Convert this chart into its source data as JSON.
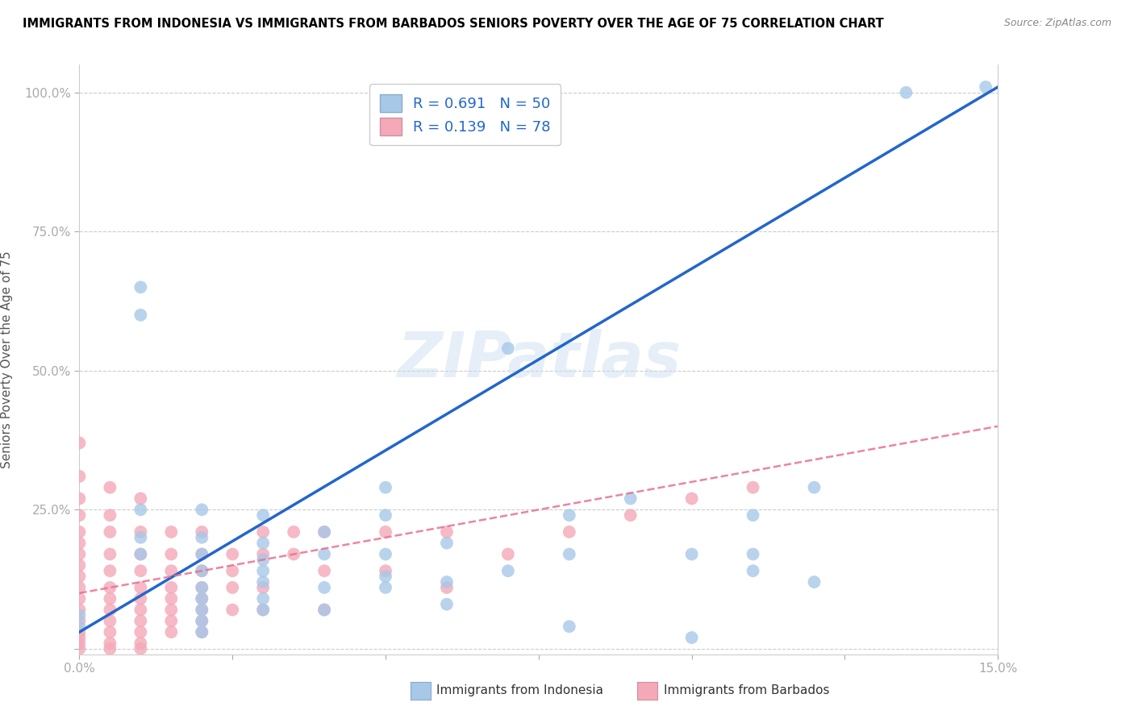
{
  "title": "IMMIGRANTS FROM INDONESIA VS IMMIGRANTS FROM BARBADOS SENIORS POVERTY OVER THE AGE OF 75 CORRELATION CHART",
  "source": "Source: ZipAtlas.com",
  "ylabel": "Seniors Poverty Over the Age of 75",
  "xlim": [
    0.0,
    0.15
  ],
  "ylim": [
    0.0,
    1.05
  ],
  "indonesia_color": "#a8c8e8",
  "barbados_color": "#f4a8b8",
  "indonesia_line_color": "#2266cc",
  "barbados_line_color": "#e87090",
  "indonesia_R": 0.691,
  "indonesia_N": 50,
  "barbados_R": 0.139,
  "barbados_N": 78,
  "indonesia_line": [
    [
      0.0,
      0.03
    ],
    [
      0.15,
      1.01
    ]
  ],
  "barbados_line": [
    [
      0.0,
      0.1
    ],
    [
      0.15,
      0.4
    ]
  ],
  "indonesia_scatter": [
    [
      0.0,
      0.06
    ],
    [
      0.0,
      0.04
    ],
    [
      0.01,
      0.65
    ],
    [
      0.01,
      0.6
    ],
    [
      0.01,
      0.25
    ],
    [
      0.01,
      0.2
    ],
    [
      0.01,
      0.17
    ],
    [
      0.02,
      0.25
    ],
    [
      0.02,
      0.2
    ],
    [
      0.02,
      0.17
    ],
    [
      0.02,
      0.14
    ],
    [
      0.02,
      0.11
    ],
    [
      0.02,
      0.09
    ],
    [
      0.02,
      0.07
    ],
    [
      0.02,
      0.05
    ],
    [
      0.02,
      0.03
    ],
    [
      0.03,
      0.24
    ],
    [
      0.03,
      0.19
    ],
    [
      0.03,
      0.16
    ],
    [
      0.03,
      0.14
    ],
    [
      0.03,
      0.12
    ],
    [
      0.03,
      0.09
    ],
    [
      0.03,
      0.07
    ],
    [
      0.04,
      0.21
    ],
    [
      0.04,
      0.17
    ],
    [
      0.04,
      0.11
    ],
    [
      0.04,
      0.07
    ],
    [
      0.05,
      0.29
    ],
    [
      0.05,
      0.24
    ],
    [
      0.05,
      0.17
    ],
    [
      0.05,
      0.11
    ],
    [
      0.06,
      0.19
    ],
    [
      0.06,
      0.12
    ],
    [
      0.07,
      0.54
    ],
    [
      0.07,
      0.14
    ],
    [
      0.08,
      0.24
    ],
    [
      0.08,
      0.17
    ],
    [
      0.08,
      0.04
    ],
    [
      0.09,
      0.27
    ],
    [
      0.1,
      0.17
    ],
    [
      0.1,
      0.02
    ],
    [
      0.11,
      0.24
    ],
    [
      0.11,
      0.17
    ],
    [
      0.11,
      0.14
    ],
    [
      0.12,
      0.29
    ],
    [
      0.12,
      0.12
    ],
    [
      0.135,
      1.0
    ],
    [
      0.148,
      1.01
    ],
    [
      0.05,
      0.13
    ],
    [
      0.06,
      0.08
    ]
  ],
  "barbados_scatter": [
    [
      0.0,
      0.37
    ],
    [
      0.0,
      0.31
    ],
    [
      0.0,
      0.27
    ],
    [
      0.0,
      0.24
    ],
    [
      0.0,
      0.21
    ],
    [
      0.0,
      0.19
    ],
    [
      0.0,
      0.17
    ],
    [
      0.0,
      0.15
    ],
    [
      0.0,
      0.13
    ],
    [
      0.0,
      0.11
    ],
    [
      0.0,
      0.09
    ],
    [
      0.0,
      0.07
    ],
    [
      0.0,
      0.05
    ],
    [
      0.0,
      0.03
    ],
    [
      0.0,
      0.02
    ],
    [
      0.0,
      0.01
    ],
    [
      0.0,
      0.0
    ],
    [
      0.005,
      0.29
    ],
    [
      0.005,
      0.24
    ],
    [
      0.005,
      0.21
    ],
    [
      0.005,
      0.17
    ],
    [
      0.005,
      0.14
    ],
    [
      0.005,
      0.11
    ],
    [
      0.005,
      0.09
    ],
    [
      0.005,
      0.07
    ],
    [
      0.005,
      0.05
    ],
    [
      0.005,
      0.03
    ],
    [
      0.005,
      0.01
    ],
    [
      0.005,
      0.0
    ],
    [
      0.01,
      0.27
    ],
    [
      0.01,
      0.21
    ],
    [
      0.01,
      0.17
    ],
    [
      0.01,
      0.14
    ],
    [
      0.01,
      0.11
    ],
    [
      0.01,
      0.09
    ],
    [
      0.01,
      0.07
    ],
    [
      0.01,
      0.05
    ],
    [
      0.01,
      0.03
    ],
    [
      0.01,
      0.01
    ],
    [
      0.01,
      0.0
    ],
    [
      0.015,
      0.21
    ],
    [
      0.015,
      0.17
    ],
    [
      0.015,
      0.14
    ],
    [
      0.015,
      0.11
    ],
    [
      0.015,
      0.09
    ],
    [
      0.015,
      0.07
    ],
    [
      0.015,
      0.05
    ],
    [
      0.015,
      0.03
    ],
    [
      0.02,
      0.21
    ],
    [
      0.02,
      0.17
    ],
    [
      0.02,
      0.14
    ],
    [
      0.02,
      0.11
    ],
    [
      0.02,
      0.09
    ],
    [
      0.02,
      0.07
    ],
    [
      0.02,
      0.05
    ],
    [
      0.02,
      0.03
    ],
    [
      0.025,
      0.17
    ],
    [
      0.025,
      0.14
    ],
    [
      0.025,
      0.11
    ],
    [
      0.025,
      0.07
    ],
    [
      0.03,
      0.21
    ],
    [
      0.03,
      0.17
    ],
    [
      0.03,
      0.11
    ],
    [
      0.03,
      0.07
    ],
    [
      0.035,
      0.21
    ],
    [
      0.035,
      0.17
    ],
    [
      0.04,
      0.21
    ],
    [
      0.04,
      0.14
    ],
    [
      0.04,
      0.07
    ],
    [
      0.05,
      0.21
    ],
    [
      0.05,
      0.14
    ],
    [
      0.06,
      0.21
    ],
    [
      0.06,
      0.11
    ],
    [
      0.07,
      0.17
    ],
    [
      0.08,
      0.21
    ],
    [
      0.09,
      0.24
    ],
    [
      0.1,
      0.27
    ],
    [
      0.11,
      0.29
    ]
  ]
}
